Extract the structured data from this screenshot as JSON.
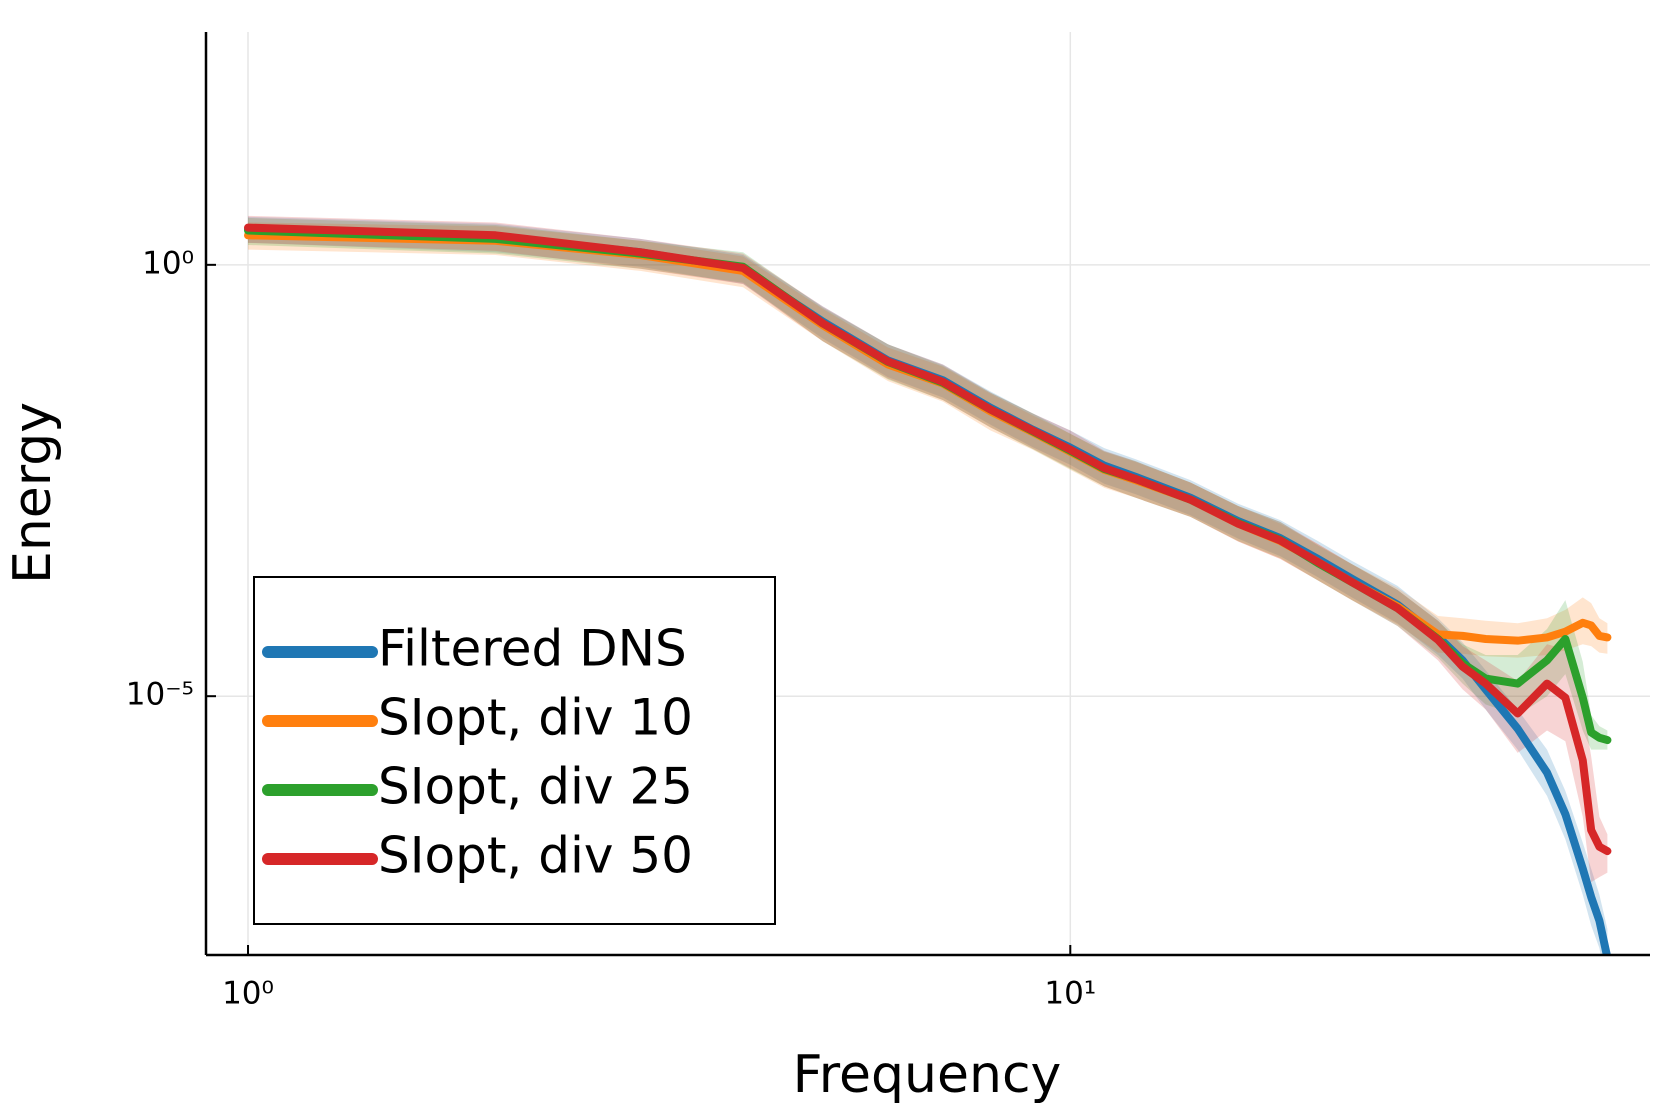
{
  "chart_data": {
    "type": "line",
    "xlabel": "Frequency",
    "ylabel": "Energy",
    "xscale": "log",
    "yscale": "log",
    "grid": true,
    "legend": "lower left",
    "xlim": [
      0.889,
      50.7
    ],
    "ylim": [
      1e-08,
      500
    ],
    "xticks": [
      {
        "value": 1,
        "label": "10⁰"
      },
      {
        "value": 10,
        "label": "10¹"
      }
    ],
    "yticks": [
      {
        "value": 1e-05,
        "label": "10⁻⁵"
      },
      {
        "value": 1,
        "label": "10⁰"
      }
    ],
    "x": [
      1,
      2,
      3,
      4,
      5,
      6,
      7,
      8,
      9,
      10,
      11,
      12,
      14,
      16,
      18,
      20,
      22,
      25,
      28,
      30,
      32,
      35,
      38,
      40,
      42,
      43,
      44,
      45
    ],
    "series": [
      {
        "name": "Filtered DNS",
        "color": "#1f77b4",
        "values": [
          2.6,
          2.1,
          1.4,
          0.9,
          0.22,
          0.078,
          0.046,
          0.022,
          0.0123,
          0.0076,
          0.0047,
          0.0035,
          0.002,
          0.00107,
          0.00068,
          0.00039,
          0.00023,
          0.000115,
          4.9e-05,
          2.6e-05,
          1.2e-05,
          4.2e-06,
          1.3e-06,
          4.3e-07,
          1e-07,
          4.7e-08,
          2.5e-08,
          9.3e-09
        ],
        "upper": [
          3.6,
          3.0,
          2.0,
          1.3,
          0.33,
          0.12,
          0.07,
          0.034,
          0.019,
          0.012,
          0.0075,
          0.0056,
          0.0032,
          0.0017,
          0.0011,
          0.00063,
          0.00037,
          0.00019,
          8e-05,
          4.2e-05,
          2e-05,
          7e-06,
          2.4e-06,
          8e-07,
          2e-07,
          1e-07,
          5e-08,
          2e-08
        ],
        "lower": [
          1.8,
          1.4,
          0.95,
          0.6,
          0.14,
          0.05,
          0.029,
          0.014,
          0.0077,
          0.0048,
          0.0029,
          0.0022,
          0.00125,
          0.00067,
          0.00042,
          0.00024,
          0.00014,
          7e-05,
          3e-05,
          1.6e-05,
          7e-06,
          2.4e-06,
          7e-07,
          2.2e-07,
          5e-08,
          2.2e-08,
          1.2e-08,
          4e-09
        ]
      },
      {
        "name": "SIopt, div 10",
        "color": "#ff7f0e",
        "values": [
          2.2,
          1.9,
          1.3,
          0.85,
          0.2,
          0.07,
          0.042,
          0.02,
          0.0115,
          0.0068,
          0.0042,
          0.0032,
          0.0019,
          0.001,
          0.00063,
          0.00036,
          0.00021,
          0.00011,
          5.2e-05,
          5e-05,
          4.6e-05,
          4.4e-05,
          4.8e-05,
          5.6e-05,
          7.1e-05,
          6.6e-05,
          5e-05,
          4.8e-05
        ],
        "upper": [
          3.1,
          2.8,
          1.9,
          1.25,
          0.31,
          0.11,
          0.066,
          0.032,
          0.018,
          0.011,
          0.0068,
          0.0052,
          0.003,
          0.0016,
          0.001,
          0.00058,
          0.00034,
          0.00018,
          8.5e-05,
          8e-05,
          7.5e-05,
          7e-05,
          8e-05,
          0.0001,
          0.00014,
          0.00012,
          8e-05,
          7e-05
        ],
        "lower": [
          1.5,
          1.3,
          0.85,
          0.55,
          0.13,
          0.045,
          0.026,
          0.012,
          0.0072,
          0.0042,
          0.0026,
          0.002,
          0.0012,
          0.00062,
          0.00039,
          0.00022,
          0.00013,
          6.8e-05,
          3.2e-05,
          3.1e-05,
          2.9e-05,
          2.8e-05,
          3e-05,
          3.4e-05,
          4e-05,
          3.8e-05,
          3.2e-05,
          3.1e-05
        ]
      },
      {
        "name": "SIopt, div 25",
        "color": "#2ca02c",
        "values": [
          2.5,
          2.0,
          1.35,
          0.95,
          0.21,
          0.075,
          0.043,
          0.021,
          0.0118,
          0.007,
          0.0043,
          0.0033,
          0.0019,
          0.00102,
          0.00065,
          0.00035,
          0.00021,
          0.000105,
          4.6e-05,
          2.4e-05,
          1.6e-05,
          1.4e-05,
          2.6e-05,
          4.6e-05,
          9.6e-06,
          3.8e-06,
          3.3e-06,
          3.1e-06
        ],
        "upper": [
          3.5,
          2.9,
          1.9,
          1.4,
          0.32,
          0.12,
          0.068,
          0.033,
          0.019,
          0.011,
          0.0069,
          0.0053,
          0.003,
          0.0016,
          0.00105,
          0.00056,
          0.00034,
          0.00017,
          7.5e-05,
          4e-05,
          3e-05,
          3e-05,
          6e-05,
          0.00013,
          2.5e-05,
          6e-06,
          4.5e-06,
          4e-06
        ],
        "lower": [
          1.7,
          1.35,
          0.9,
          0.62,
          0.13,
          0.047,
          0.027,
          0.013,
          0.0073,
          0.0043,
          0.0027,
          0.002,
          0.0012,
          0.00063,
          0.0004,
          0.00022,
          0.00013,
          6.5e-05,
          2.8e-05,
          1.4e-05,
          8e-06,
          6e-06,
          1e-05,
          1.8e-05,
          4e-06,
          2.4e-06,
          2.4e-06,
          2.4e-06
        ]
      },
      {
        "name": "SIopt, div 50",
        "color": "#d62728",
        "values": [
          2.7,
          2.2,
          1.4,
          0.92,
          0.21,
          0.076,
          0.044,
          0.021,
          0.012,
          0.0072,
          0.0044,
          0.0033,
          0.0019,
          0.001,
          0.00064,
          0.00036,
          0.00021,
          0.000105,
          4.5e-05,
          2.2e-05,
          1.4e-05,
          6.3e-06,
          1.4e-05,
          9.6e-06,
          1.8e-06,
          2.8e-07,
          1.8e-07,
          1.6e-07
        ],
        "upper": [
          3.7,
          3.1,
          2.0,
          1.35,
          0.33,
          0.12,
          0.07,
          0.033,
          0.019,
          0.012,
          0.007,
          0.0053,
          0.003,
          0.0016,
          0.00105,
          0.00058,
          0.00034,
          0.00017,
          7.5e-05,
          3.8e-05,
          2.6e-05,
          1.5e-05,
          4e-05,
          3.5e-05,
          8e-06,
          2e-06,
          4e-07,
          2.5e-07
        ],
        "lower": [
          1.8,
          1.45,
          0.9,
          0.6,
          0.13,
          0.048,
          0.027,
          0.013,
          0.0074,
          0.0044,
          0.0027,
          0.002,
          0.0012,
          0.00062,
          0.00039,
          0.00022,
          0.00013,
          6.5e-05,
          2.6e-05,
          1.2e-05,
          7e-06,
          2.2e-06,
          4e-06,
          3e-06,
          4e-07,
          7e-08,
          8e-08,
          9e-08
        ]
      }
    ]
  }
}
